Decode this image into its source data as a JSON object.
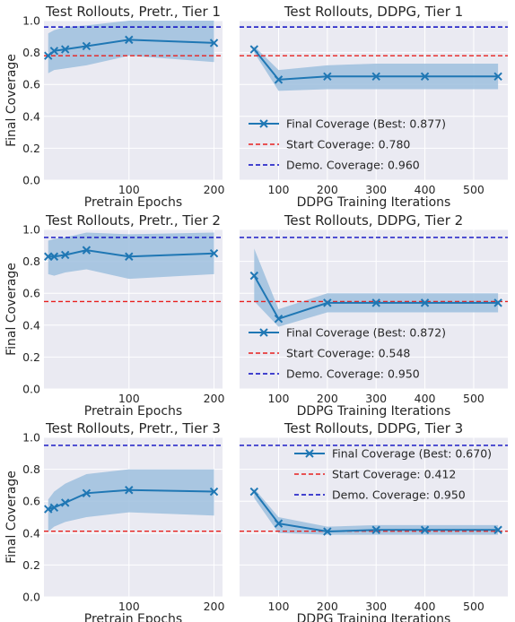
{
  "colors": {
    "axes_bg": "#eaeaf2",
    "grid": "#ffffff",
    "line": "#1f77b4",
    "band": "#9ec0de",
    "start": "#e8201e",
    "demo": "#0b0bc2"
  },
  "y_axis_label": "Final Coverage",
  "chart_data": [
    {
      "type": "line",
      "title": "Test Rollouts, Pretr., Tier 1",
      "xlabel": "Pretrain Epochs",
      "ylabel": "Final Coverage",
      "xlim": [
        0,
        210
      ],
      "ylim": [
        0,
        1.0
      ],
      "xticks": [
        100,
        200
      ],
      "yticks": [
        0.0,
        0.2,
        0.4,
        0.6,
        0.8,
        1.0
      ],
      "x": [
        5,
        12,
        25,
        50,
        100,
        200
      ],
      "y": [
        0.78,
        0.81,
        0.82,
        0.84,
        0.88,
        0.86
      ],
      "band_low": [
        0.67,
        0.69,
        0.7,
        0.72,
        0.78,
        0.74
      ],
      "band_high": [
        0.92,
        0.94,
        0.96,
        0.97,
        1.0,
        1.0
      ],
      "start_coverage": 0.78,
      "demo_coverage": 0.96,
      "grid": true,
      "legend": null
    },
    {
      "type": "line",
      "title": "Test Rollouts, DDPG, Tier 1",
      "xlabel": "DDPG Training Iterations",
      "xlim": [
        20,
        570
      ],
      "ylim": [
        0,
        1.0
      ],
      "xticks": [
        100,
        200,
        300,
        400,
        500
      ],
      "yticks": [
        0.0,
        0.2,
        0.4,
        0.6,
        0.8,
        1.0
      ],
      "x": [
        50,
        100,
        200,
        300,
        400,
        550
      ],
      "y": [
        0.82,
        0.63,
        0.65,
        0.65,
        0.65,
        0.65
      ],
      "band_low": [
        0.8,
        0.56,
        0.57,
        0.57,
        0.57,
        0.57
      ],
      "band_high": [
        0.84,
        0.69,
        0.72,
        0.73,
        0.73,
        0.73
      ],
      "start_coverage": 0.78,
      "demo_coverage": 0.96,
      "grid": true,
      "legend": {
        "placement": "lower-left",
        "entries": [
          "Final Coverage (Best: 0.877)",
          "Start Coverage: 0.780",
          "Demo. Coverage: 0.960"
        ]
      }
    },
    {
      "type": "line",
      "title": "Test Rollouts, Pretr., Tier 2",
      "xlabel": "Pretrain Epochs",
      "ylabel": "Final Coverage",
      "xlim": [
        0,
        210
      ],
      "ylim": [
        0,
        1.0
      ],
      "xticks": [
        100,
        200
      ],
      "yticks": [
        0.0,
        0.2,
        0.4,
        0.6,
        0.8,
        1.0
      ],
      "x": [
        5,
        12,
        25,
        50,
        100,
        200
      ],
      "y": [
        0.83,
        0.83,
        0.84,
        0.87,
        0.83,
        0.85
      ],
      "band_low": [
        0.72,
        0.71,
        0.73,
        0.75,
        0.69,
        0.72
      ],
      "band_high": [
        0.93,
        0.94,
        0.95,
        0.98,
        0.97,
        0.98
      ],
      "start_coverage": 0.548,
      "demo_coverage": 0.95,
      "grid": true,
      "legend": null
    },
    {
      "type": "line",
      "title": "Test Rollouts, DDPG, Tier 2",
      "xlabel": "DDPG Training Iterations",
      "xlim": [
        20,
        570
      ],
      "ylim": [
        0,
        1.0
      ],
      "xticks": [
        100,
        200,
        300,
        400,
        500
      ],
      "yticks": [
        0.0,
        0.2,
        0.4,
        0.6,
        0.8,
        1.0
      ],
      "x": [
        50,
        100,
        200,
        300,
        400,
        550
      ],
      "y": [
        0.71,
        0.44,
        0.54,
        0.54,
        0.54,
        0.54
      ],
      "band_low": [
        0.55,
        0.39,
        0.48,
        0.48,
        0.48,
        0.48
      ],
      "band_high": [
        0.88,
        0.5,
        0.6,
        0.6,
        0.6,
        0.6
      ],
      "start_coverage": 0.548,
      "demo_coverage": 0.95,
      "grid": true,
      "legend": {
        "placement": "lower-left",
        "entries": [
          "Final Coverage (Best: 0.872)",
          "Start Coverage: 0.548",
          "Demo. Coverage: 0.950"
        ]
      }
    },
    {
      "type": "line",
      "title": "Test Rollouts, Pretr., Tier 3",
      "xlabel": "Pretrain Epochs",
      "ylabel": "Final Coverage",
      "xlim": [
        0,
        210
      ],
      "ylim": [
        0,
        1.0
      ],
      "xticks": [
        100,
        200
      ],
      "yticks": [
        0.0,
        0.2,
        0.4,
        0.6,
        0.8,
        1.0
      ],
      "x": [
        5,
        12,
        25,
        50,
        100,
        200
      ],
      "y": [
        0.55,
        0.56,
        0.59,
        0.65,
        0.67,
        0.66
      ],
      "band_low": [
        0.41,
        0.44,
        0.47,
        0.5,
        0.53,
        0.51
      ],
      "band_high": [
        0.61,
        0.66,
        0.71,
        0.77,
        0.8,
        0.8
      ],
      "start_coverage": 0.412,
      "demo_coverage": 0.95,
      "grid": true,
      "legend": null
    },
    {
      "type": "line",
      "title": "Test Rollouts, DDPG, Tier 3",
      "xlabel": "DDPG Training Iterations",
      "xlim": [
        20,
        570
      ],
      "ylim": [
        0,
        1.0
      ],
      "xticks": [
        100,
        200,
        300,
        400,
        500
      ],
      "yticks": [
        0.0,
        0.2,
        0.4,
        0.6,
        0.8,
        1.0
      ],
      "x": [
        50,
        100,
        200,
        300,
        400,
        550
      ],
      "y": [
        0.66,
        0.46,
        0.41,
        0.42,
        0.42,
        0.42
      ],
      "band_low": [
        0.62,
        0.4,
        0.39,
        0.39,
        0.39,
        0.39
      ],
      "band_high": [
        0.68,
        0.5,
        0.44,
        0.45,
        0.45,
        0.45
      ],
      "start_coverage": 0.412,
      "demo_coverage": 0.95,
      "grid": true,
      "legend": {
        "placement": "upper-right",
        "entries": [
          "Final Coverage (Best: 0.670)",
          "Start Coverage: 0.412",
          "Demo. Coverage: 0.950"
        ]
      }
    }
  ]
}
